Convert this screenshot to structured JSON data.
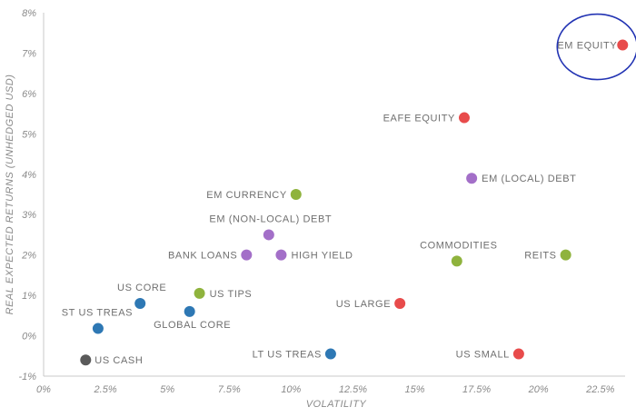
{
  "chart_data": {
    "type": "scatter",
    "xlabel": "VOLATILITY",
    "ylabel": "REAL EXPECTED RETURNS (UNHEDGED USD)",
    "xlim": [
      0,
      23.5
    ],
    "ylim": [
      -1,
      8
    ],
    "x_ticks": [
      "0%",
      "2.5%",
      "5%",
      "7.5%",
      "10%",
      "12.5%",
      "15%",
      "17.5%",
      "20%",
      "22.5%"
    ],
    "y_ticks": [
      "-1%",
      "0%",
      "1%",
      "2%",
      "3%",
      "4%",
      "5%",
      "6%",
      "7%",
      "8%"
    ],
    "grid": false,
    "colors": {
      "equity": "#e84b4b",
      "credit": "#a36fc8",
      "real_assets": "#8fb33d",
      "rates": "#2e78b4",
      "cash": "#5a5a5a",
      "highlight": "#2233b3"
    },
    "points": [
      {
        "label": "EM EQUITY",
        "x": 23.4,
        "y": 7.2,
        "group": "equity",
        "highlight": true
      },
      {
        "label": "EAFE EQUITY",
        "x": 17.0,
        "y": 5.4,
        "group": "equity"
      },
      {
        "label": "US LARGE",
        "x": 14.4,
        "y": 0.8,
        "group": "equity"
      },
      {
        "label": "US SMALL",
        "x": 19.2,
        "y": -0.45,
        "group": "equity"
      },
      {
        "label": "EM (LOCAL) DEBT",
        "x": 17.3,
        "y": 3.9,
        "group": "credit"
      },
      {
        "label": "EM (NON-LOCAL) DEBT",
        "x": 9.1,
        "y": 2.5,
        "group": "credit"
      },
      {
        "label": "BANK LOANS",
        "x": 8.2,
        "y": 2.0,
        "group": "credit"
      },
      {
        "label": "HIGH YIELD",
        "x": 9.6,
        "y": 2.0,
        "group": "credit"
      },
      {
        "label": "EM CURRENCY",
        "x": 10.2,
        "y": 3.5,
        "group": "real_assets"
      },
      {
        "label": "COMMODITIES",
        "x": 16.7,
        "y": 1.85,
        "group": "real_assets"
      },
      {
        "label": "REITS",
        "x": 21.1,
        "y": 2.0,
        "group": "real_assets"
      },
      {
        "label": "US TIPS",
        "x": 6.3,
        "y": 1.05,
        "group": "real_assets"
      },
      {
        "label": "US CORE",
        "x": 3.9,
        "y": 0.8,
        "group": "rates"
      },
      {
        "label": "GLOBAL CORE",
        "x": 5.9,
        "y": 0.6,
        "group": "rates"
      },
      {
        "label": "ST US TREAS",
        "x": 2.2,
        "y": 0.18,
        "group": "rates"
      },
      {
        "label": "LT US TREAS",
        "x": 11.6,
        "y": -0.45,
        "group": "rates"
      },
      {
        "label": "US CASH",
        "x": 1.7,
        "y": -0.6,
        "group": "cash"
      }
    ]
  }
}
